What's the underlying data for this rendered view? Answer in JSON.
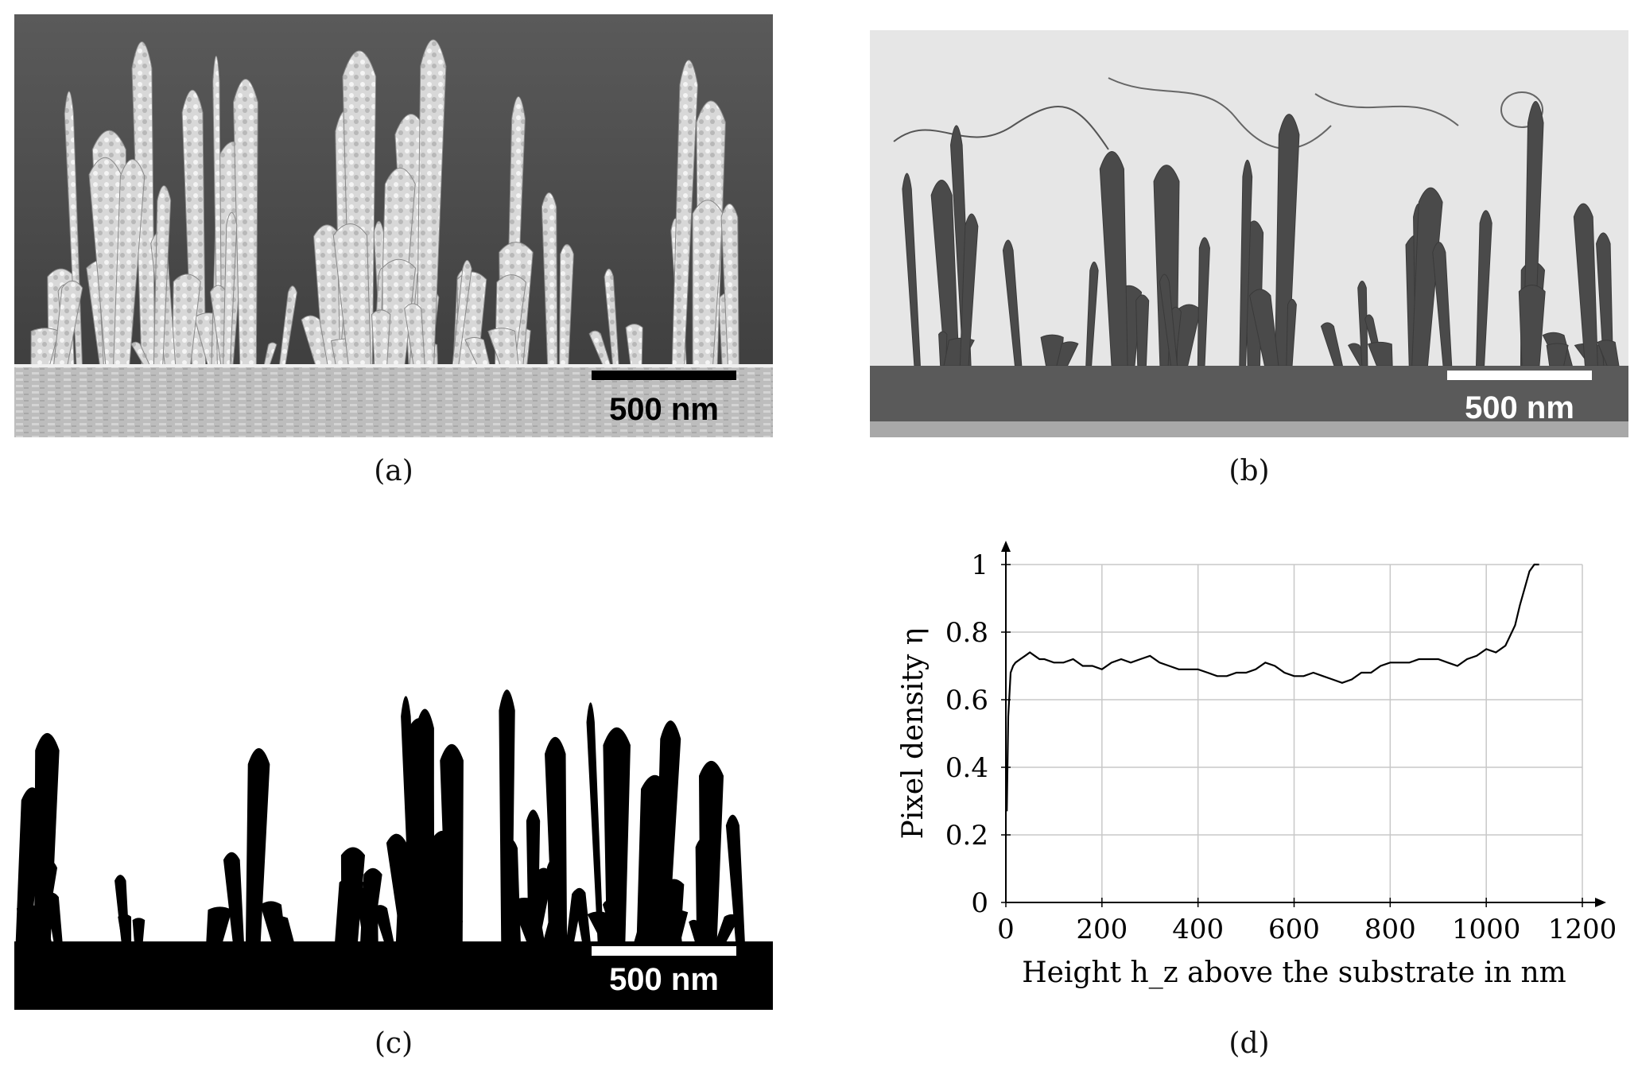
{
  "panels": {
    "a": {
      "caption": "(a)",
      "scale_bar": "500 nm"
    },
    "b": {
      "caption": "(b)",
      "scale_bar": "500 nm"
    },
    "c": {
      "caption": "(c)",
      "scale_bar": "500 nm"
    },
    "d": {
      "caption": "(d)"
    }
  },
  "chart_data": {
    "type": "line",
    "title": "",
    "xlabel": "Height h_z above the substrate in nm",
    "ylabel": "Pixel density η",
    "xlim": [
      0,
      1200
    ],
    "ylim": [
      0,
      1
    ],
    "xticks": [
      0,
      200,
      400,
      600,
      800,
      1000,
      1200
    ],
    "yticks": [
      0,
      0.2,
      0.4,
      0.6,
      0.8,
      1
    ],
    "ytick_labels": [
      "0",
      "0.2",
      "0.4",
      "0.6",
      "0.8",
      "1"
    ],
    "grid": true,
    "series": [
      {
        "x": [
          2,
          5,
          10,
          15,
          20,
          30,
          40,
          50,
          60,
          70,
          80,
          100,
          120,
          140,
          160,
          180,
          200,
          220,
          240,
          260,
          280,
          300,
          320,
          340,
          360,
          380,
          400,
          420,
          440,
          460,
          480,
          500,
          520,
          540,
          560,
          580,
          600,
          620,
          640,
          660,
          680,
          700,
          720,
          740,
          760,
          780,
          800,
          820,
          840,
          860,
          880,
          900,
          920,
          940,
          960,
          980,
          1000,
          1020,
          1040,
          1060,
          1070,
          1080,
          1090,
          1100,
          1110
        ],
        "y": [
          0.27,
          0.55,
          0.68,
          0.7,
          0.71,
          0.72,
          0.73,
          0.74,
          0.73,
          0.72,
          0.72,
          0.71,
          0.71,
          0.72,
          0.7,
          0.7,
          0.69,
          0.71,
          0.72,
          0.71,
          0.72,
          0.73,
          0.71,
          0.7,
          0.69,
          0.69,
          0.69,
          0.68,
          0.67,
          0.67,
          0.68,
          0.68,
          0.69,
          0.71,
          0.7,
          0.68,
          0.67,
          0.67,
          0.68,
          0.67,
          0.66,
          0.65,
          0.66,
          0.68,
          0.68,
          0.7,
          0.71,
          0.71,
          0.71,
          0.72,
          0.72,
          0.72,
          0.71,
          0.7,
          0.72,
          0.73,
          0.75,
          0.74,
          0.76,
          0.82,
          0.88,
          0.93,
          0.98,
          1.0,
          1.0
        ]
      }
    ]
  }
}
